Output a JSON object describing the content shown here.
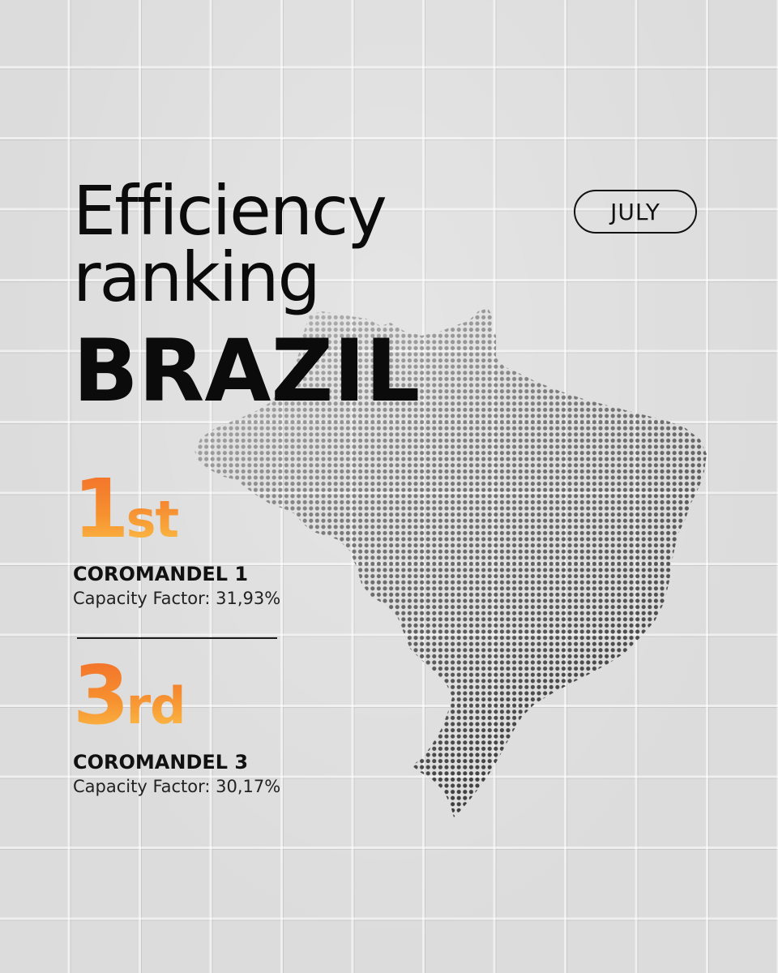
{
  "header": {
    "title_line_1": "Efficiency",
    "title_line_2": "ranking",
    "country": "BRAZIL",
    "month": "JULY"
  },
  "rankings": [
    {
      "place_number": "1",
      "place_suffix": "st",
      "plant": "COROMANDEL 1",
      "capacity_factor": "Capacity Factor: 31,93%"
    },
    {
      "place_number": "3",
      "place_suffix": "rd",
      "plant": "COROMANDEL 3",
      "capacity_factor": "Capacity Factor: 30,17%"
    }
  ],
  "colors": {
    "background": "#dcdcdc",
    "text": "#111111",
    "rank_gradient_top": "#f26a2a",
    "rank_gradient_bottom": "#fcc24a",
    "map_dots_dark": "#3c3c3c",
    "map_dots_light": "#bdbdbd"
  },
  "icons": {
    "map": "brazil-dotted-map"
  }
}
